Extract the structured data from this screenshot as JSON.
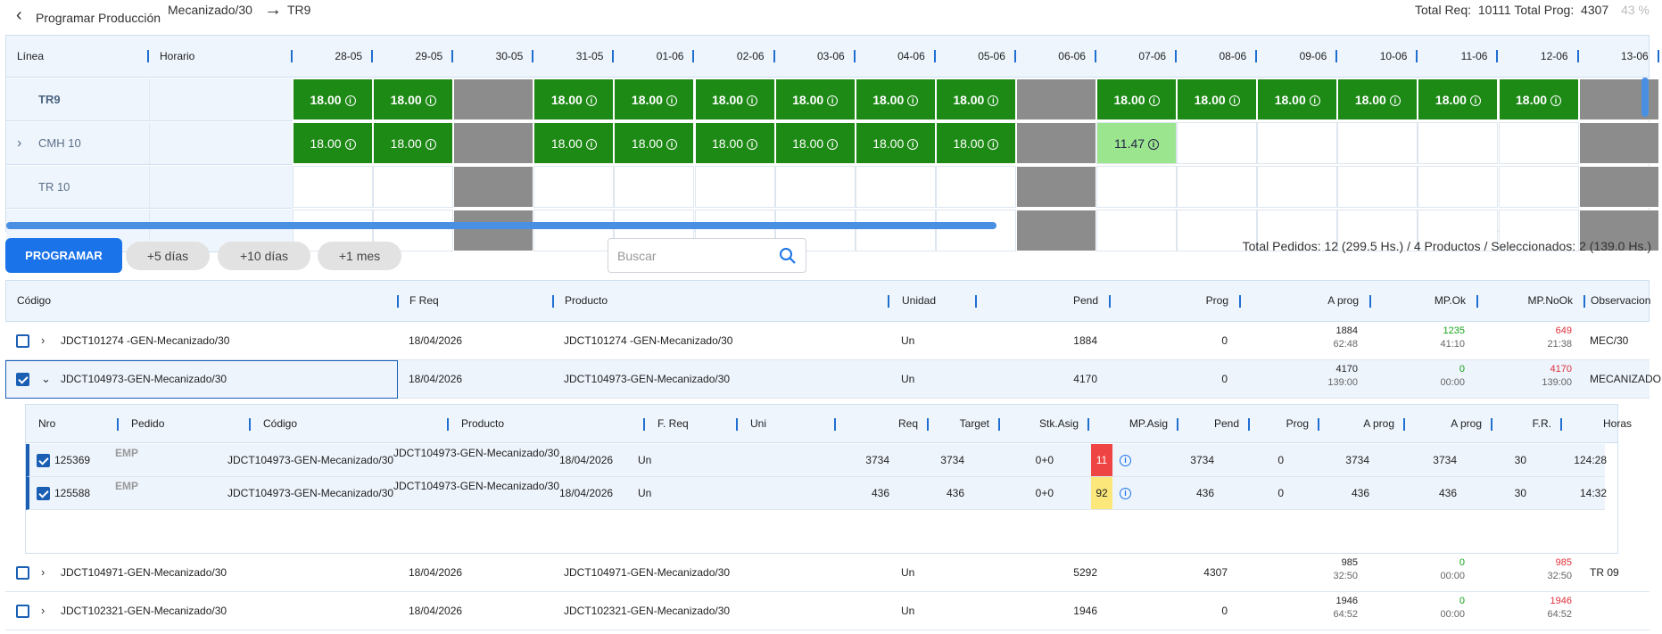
{
  "header": {
    "back_label": "Programar Producción",
    "breadcrumb_from": "Mecanizado/30",
    "breadcrumb_to": "TR9",
    "total_req_label": "Total Req:",
    "total_req_value": "10111",
    "total_prog_label": "Total Prog:",
    "total_prog_value": "4307",
    "percent": "43 %"
  },
  "calendar": {
    "col_linea": "Línea",
    "col_horario": "Horario",
    "dates": [
      "28-05",
      "29-05",
      "30-05",
      "31-05",
      "01-06",
      "02-06",
      "03-06",
      "04-06",
      "05-06",
      "06-06",
      "07-06",
      "08-06",
      "09-06",
      "10-06",
      "11-06",
      "12-06",
      "13-06"
    ],
    "rows": [
      {
        "label": "TR9",
        "bold": true,
        "expandable": false,
        "cells": [
          {
            "t": "g",
            "v": "18.00"
          },
          {
            "t": "g",
            "v": "18.00"
          },
          {
            "t": "gr",
            "v": ""
          },
          {
            "t": "g",
            "v": "18.00"
          },
          {
            "t": "g",
            "v": "18.00"
          },
          {
            "t": "g",
            "v": "18.00"
          },
          {
            "t": "g",
            "v": "18.00"
          },
          {
            "t": "g",
            "v": "18.00"
          },
          {
            "t": "g",
            "v": "18.00"
          },
          {
            "t": "gr",
            "v": ""
          },
          {
            "t": "g",
            "v": "18.00"
          },
          {
            "t": "g",
            "v": "18.00"
          },
          {
            "t": "g",
            "v": "18.00"
          },
          {
            "t": "g",
            "v": "18.00"
          },
          {
            "t": "g",
            "v": "18.00"
          },
          {
            "t": "g",
            "v": "18.00"
          },
          {
            "t": "gr",
            "v": ""
          }
        ]
      },
      {
        "label": "CMH 10",
        "bold": false,
        "expandable": true,
        "cells": [
          {
            "t": "g",
            "v": "18.00"
          },
          {
            "t": "g",
            "v": "18.00"
          },
          {
            "t": "gr",
            "v": ""
          },
          {
            "t": "g",
            "v": "18.00"
          },
          {
            "t": "g",
            "v": "18.00"
          },
          {
            "t": "g",
            "v": "18.00"
          },
          {
            "t": "g",
            "v": "18.00"
          },
          {
            "t": "g",
            "v": "18.00"
          },
          {
            "t": "g",
            "v": "18.00"
          },
          {
            "t": "gr",
            "v": ""
          },
          {
            "t": "lg",
            "v": "11.47"
          },
          {
            "t": "w",
            "v": ""
          },
          {
            "t": "w",
            "v": ""
          },
          {
            "t": "w",
            "v": ""
          },
          {
            "t": "w",
            "v": ""
          },
          {
            "t": "w",
            "v": ""
          },
          {
            "t": "gr",
            "v": ""
          }
        ]
      },
      {
        "label": "TR 10",
        "bold": false,
        "expandable": false,
        "cells": [
          {
            "t": "w",
            "v": ""
          },
          {
            "t": "w",
            "v": ""
          },
          {
            "t": "gr",
            "v": ""
          },
          {
            "t": "w",
            "v": ""
          },
          {
            "t": "w",
            "v": ""
          },
          {
            "t": "w",
            "v": ""
          },
          {
            "t": "w",
            "v": ""
          },
          {
            "t": "w",
            "v": ""
          },
          {
            "t": "w",
            "v": ""
          },
          {
            "t": "gr",
            "v": ""
          },
          {
            "t": "w",
            "v": ""
          },
          {
            "t": "w",
            "v": ""
          },
          {
            "t": "w",
            "v": ""
          },
          {
            "t": "w",
            "v": ""
          },
          {
            "t": "w",
            "v": ""
          },
          {
            "t": "w",
            "v": ""
          },
          {
            "t": "gr",
            "v": ""
          }
        ]
      },
      {
        "label": "",
        "bold": false,
        "expandable": false,
        "cells": [
          {
            "t": "w",
            "v": ""
          },
          {
            "t": "w",
            "v": ""
          },
          {
            "t": "gr",
            "v": ""
          },
          {
            "t": "w",
            "v": ""
          },
          {
            "t": "w",
            "v": ""
          },
          {
            "t": "w",
            "v": ""
          },
          {
            "t": "w",
            "v": ""
          },
          {
            "t": "w",
            "v": ""
          },
          {
            "t": "w",
            "v": ""
          },
          {
            "t": "gr",
            "v": ""
          },
          {
            "t": "w",
            "v": ""
          },
          {
            "t": "w",
            "v": ""
          },
          {
            "t": "w",
            "v": ""
          },
          {
            "t": "w",
            "v": ""
          },
          {
            "t": "w",
            "v": ""
          },
          {
            "t": "w",
            "v": ""
          },
          {
            "t": "gr",
            "v": ""
          }
        ]
      }
    ]
  },
  "toolbar": {
    "programar_label": "PROGRAMAR",
    "plus5": "+5 días",
    "plus10": "+10 días",
    "plus1m": "+1 mes",
    "search_placeholder": "Buscar",
    "summary": "Total Pedidos: 12 (299.5 Hs.) / 4 Productos /   Seleccionados: 2 (139.0 Hs.)"
  },
  "orders": {
    "columns": {
      "codigo": "Código",
      "freq": "F Req",
      "producto": "Producto",
      "unidad": "Unidad",
      "pend": "Pend",
      "prog": "Prog",
      "aprog": "A prog",
      "mpok": "MP.Ok",
      "mpnook": "MP.NoOk",
      "obs": "Observacion"
    },
    "rows": [
      {
        "checked": false,
        "expanded": false,
        "codigo": "JDCT101274 -GEN-Mecanizado/30",
        "freq": "18/04/2026",
        "producto": "JDCT101274 -GEN-Mecanizado/30",
        "unidad": "Un",
        "pend": "1884",
        "prog": "0",
        "aprog": "1884",
        "aprog_h": "62:48",
        "mpok": "1235",
        "mpok_h": "41:10",
        "mpnook": "649",
        "mpnook_h": "21:38",
        "obs": "MEC/30"
      },
      {
        "checked": true,
        "expanded": true,
        "codigo": "JDCT104973-GEN-Mecanizado/30",
        "freq": "18/04/2026",
        "producto": "JDCT104973-GEN-Mecanizado/30",
        "unidad": "Un",
        "pend": "4170",
        "prog": "0",
        "aprog": "4170",
        "aprog_h": "139:00",
        "mpok": "0",
        "mpok_h": "00:00",
        "mpnook": "4170",
        "mpnook_h": "139:00",
        "obs": "MECANIZADO"
      },
      {
        "checked": false,
        "expanded": false,
        "codigo": "JDCT104971-GEN-Mecanizado/30",
        "freq": "18/04/2026",
        "producto": "JDCT104971-GEN-Mecanizado/30",
        "unidad": "Un",
        "pend": "5292",
        "prog": "4307",
        "aprog": "985",
        "aprog_h": "32:50",
        "mpok": "0",
        "mpok_h": "00:00",
        "mpnook": "985",
        "mpnook_h": "32:50",
        "obs": "TR 09"
      },
      {
        "checked": false,
        "expanded": false,
        "codigo": "JDCT102321-GEN-Mecanizado/30",
        "freq": "18/04/2026",
        "producto": "JDCT102321-GEN-Mecanizado/30",
        "unidad": "Un",
        "pend": "1946",
        "prog": "0",
        "aprog": "1946",
        "aprog_h": "64:52",
        "mpok": "0",
        "mpok_h": "00:00",
        "mpnook": "1946",
        "mpnook_h": "64:52",
        "obs": ""
      }
    ]
  },
  "suborders": {
    "columns": {
      "nro": "Nro",
      "pedido": "Pedido",
      "codigo": "Código",
      "producto": "Producto",
      "freq": "F. Req",
      "uni": "Uni",
      "req": "Req",
      "target": "Target",
      "stk": "Stk.Asig",
      "mpasig": "MP.Asig",
      "pend": "Pend",
      "prog": "Prog",
      "aprog1": "A prog",
      "aprog2": "A prog",
      "fr": "F.R.",
      "horas": "Horas"
    },
    "rows": [
      {
        "checked": true,
        "nro": "125369",
        "pedido": "EMP",
        "codigo": "JDCT104973-GEN-Mecanizado/30",
        "producto": "JDCT104973-GEN-Mecanizado/30",
        "freq": "18/04/2026",
        "uni": "Un",
        "req": "3734",
        "target": "3734",
        "stk": "0+0",
        "mpasig": "11",
        "mp_color": "red",
        "pend": "3734",
        "prog": "0",
        "aprog1": "3734",
        "aprog2": "3734",
        "fr": "30",
        "horas": "124:28"
      },
      {
        "checked": true,
        "nro": "125588",
        "pedido": "EMP",
        "codigo": "JDCT104973-GEN-Mecanizado/30",
        "producto": "JDCT104973-GEN-Mecanizado/30",
        "freq": "18/04/2026",
        "uni": "Un",
        "req": "436",
        "target": "436",
        "stk": "0+0",
        "mpasig": "92",
        "mp_color": "yel",
        "pend": "436",
        "prog": "0",
        "aprog1": "436",
        "aprog2": "436",
        "fr": "30",
        "horas": "14:32"
      }
    ]
  }
}
